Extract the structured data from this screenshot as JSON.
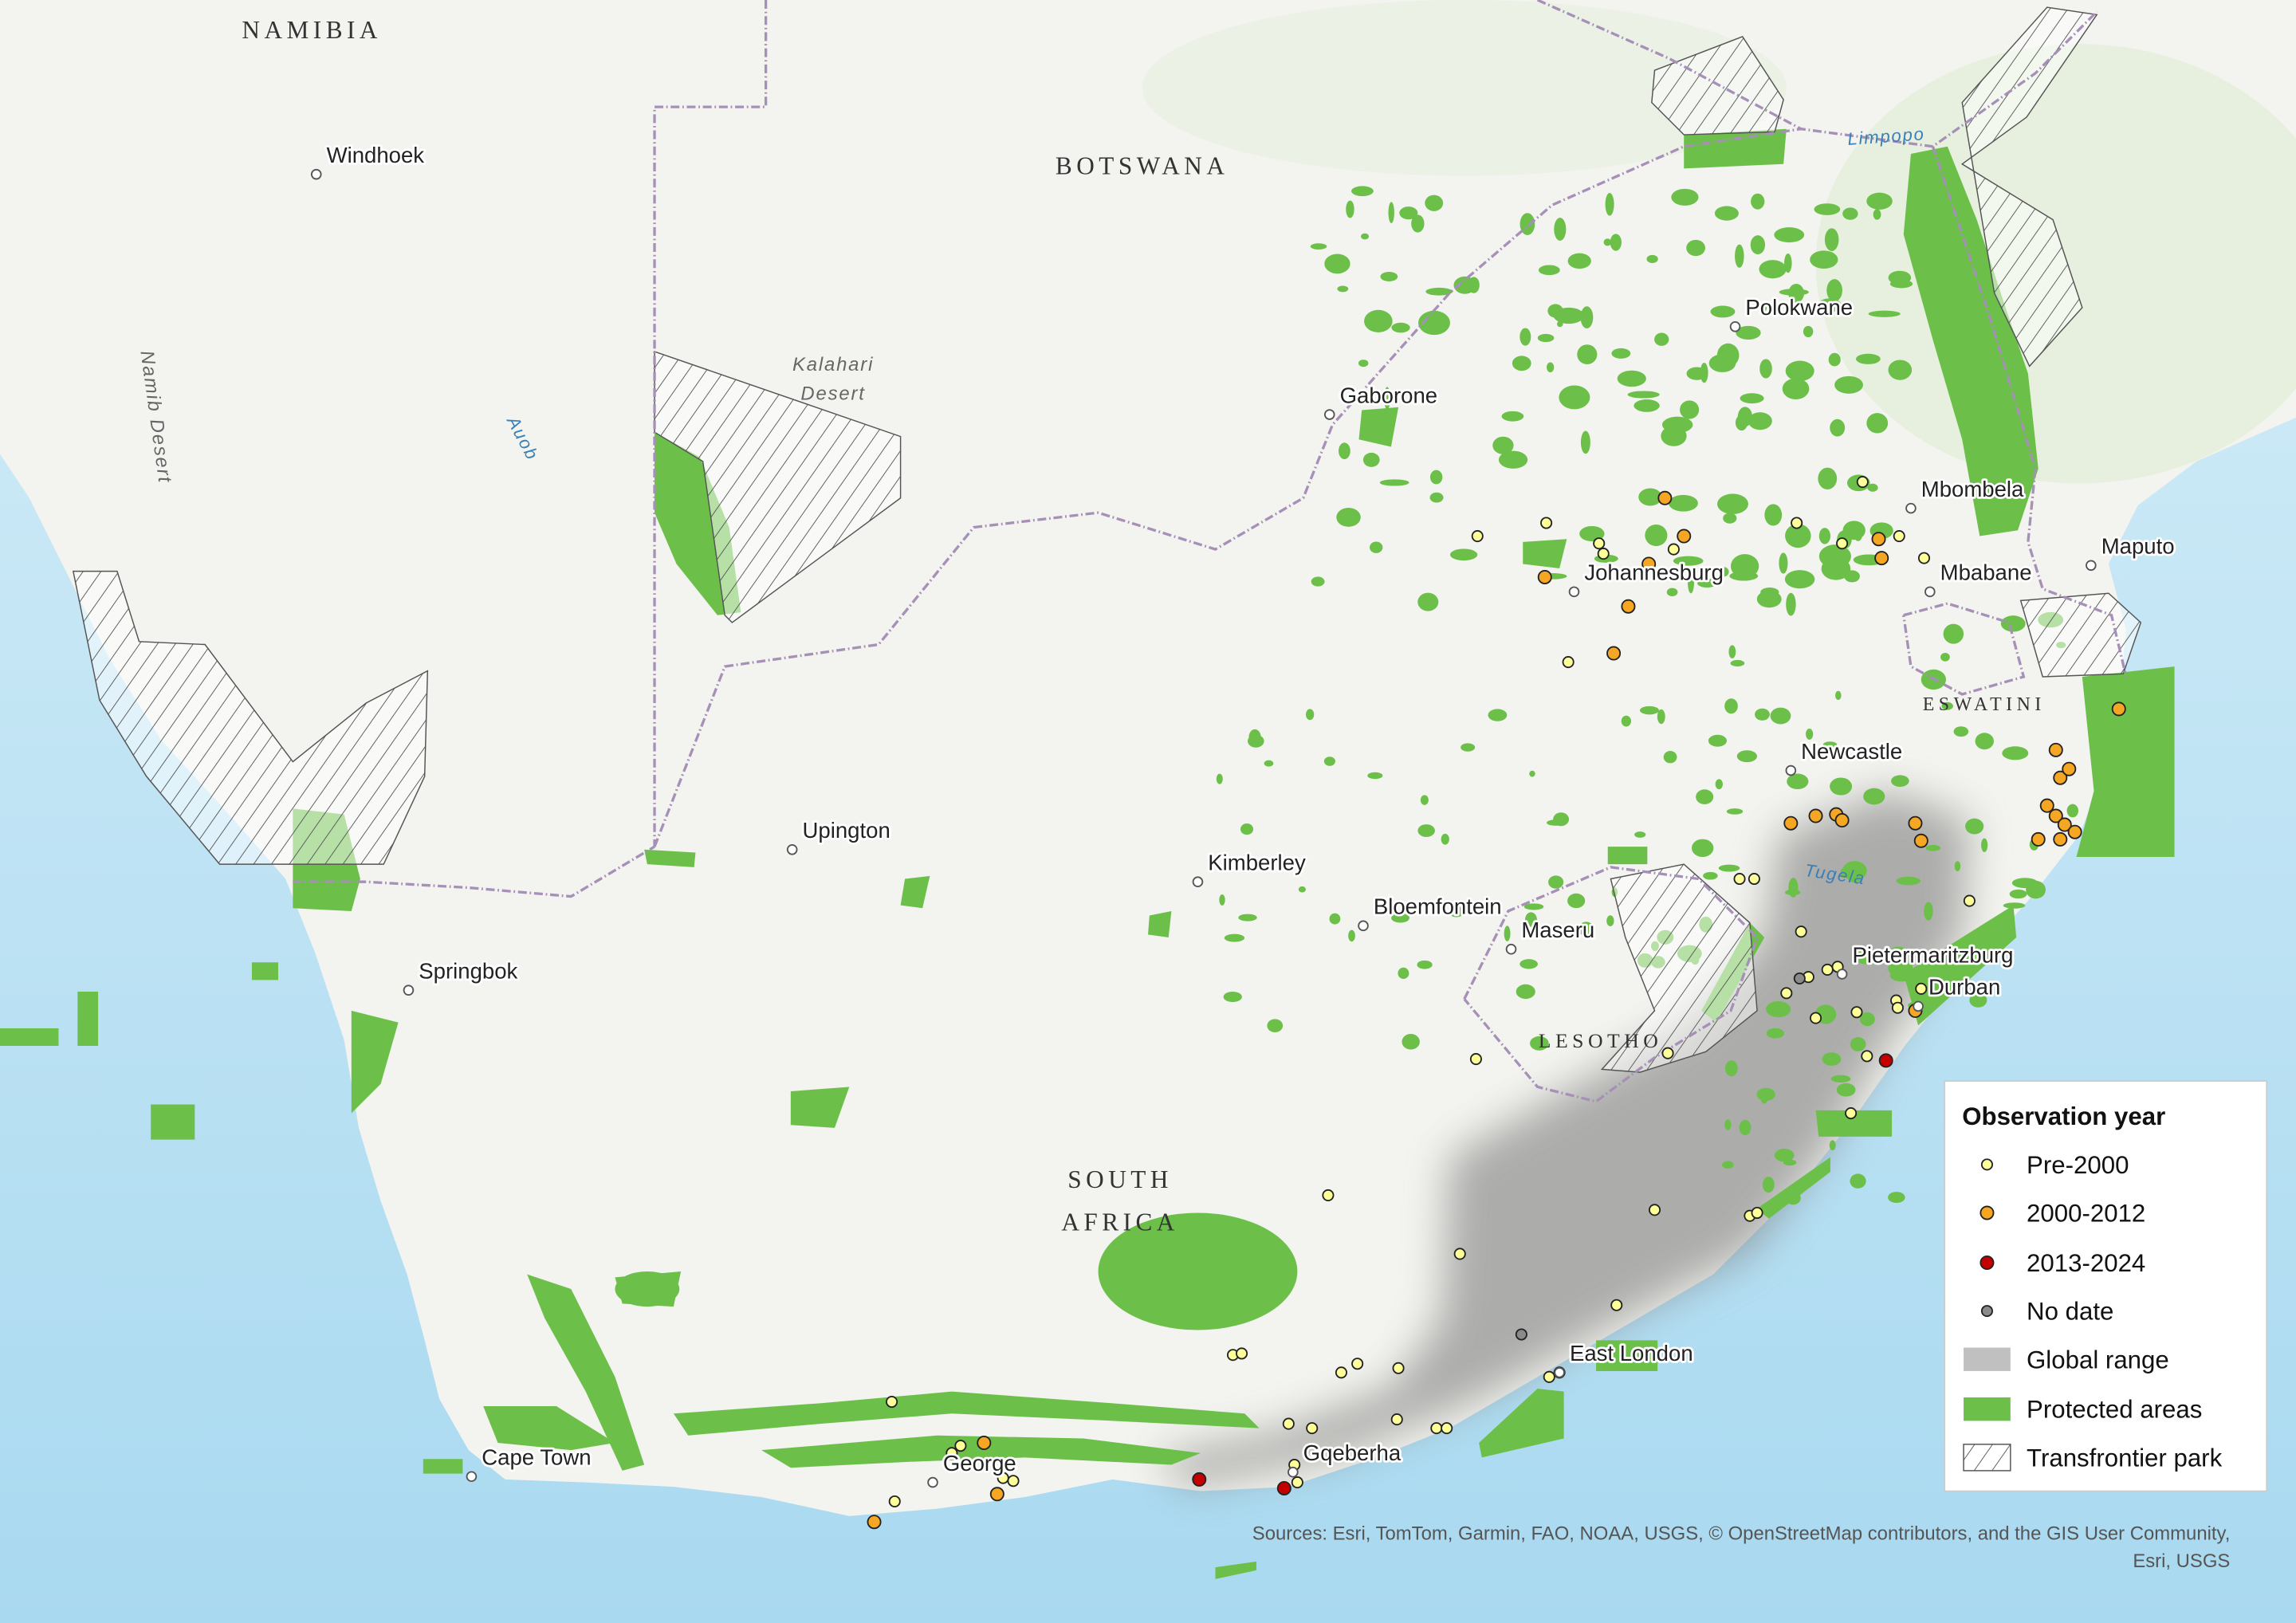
{
  "map": {
    "countries": [
      "NAMIBIA",
      "BOTSWANA",
      {
        "lines": [
          "SOUTH",
          "AFRICA"
        ]
      },
      "LESOTHO",
      "ESWATINI"
    ],
    "cities": [
      "Windhoek",
      "Gaborone",
      "Polokwane",
      "Mbombela",
      "Maputo",
      "Mbabane",
      "Johannesburg",
      "Newcastle",
      "Upington",
      "Kimberley",
      "Bloemfontein",
      "Maseru",
      "Pietermaritzburg",
      "Durban",
      "Springbok",
      "East London",
      "Gqeberha",
      "George",
      "Cape Town"
    ],
    "deserts": [
      "Namib Desert",
      {
        "lines": [
          "Kalahari",
          "Desert"
        ]
      }
    ],
    "rivers": [
      "Auob",
      "Limpopo",
      "Tugela"
    ]
  },
  "legend": {
    "title": "Observation year",
    "items": [
      "Pre-2000",
      "2000-2012",
      "2013-2024",
      "No date",
      "Global range",
      "Protected areas",
      "Transfrontier park"
    ]
  },
  "attribution": [
    "Sources: Esri, TomTom, Garmin, FAO, NOAA, USGS, © OpenStreetMap contributors, and the GIS User Community,",
    "Esri, USGS"
  ]
}
